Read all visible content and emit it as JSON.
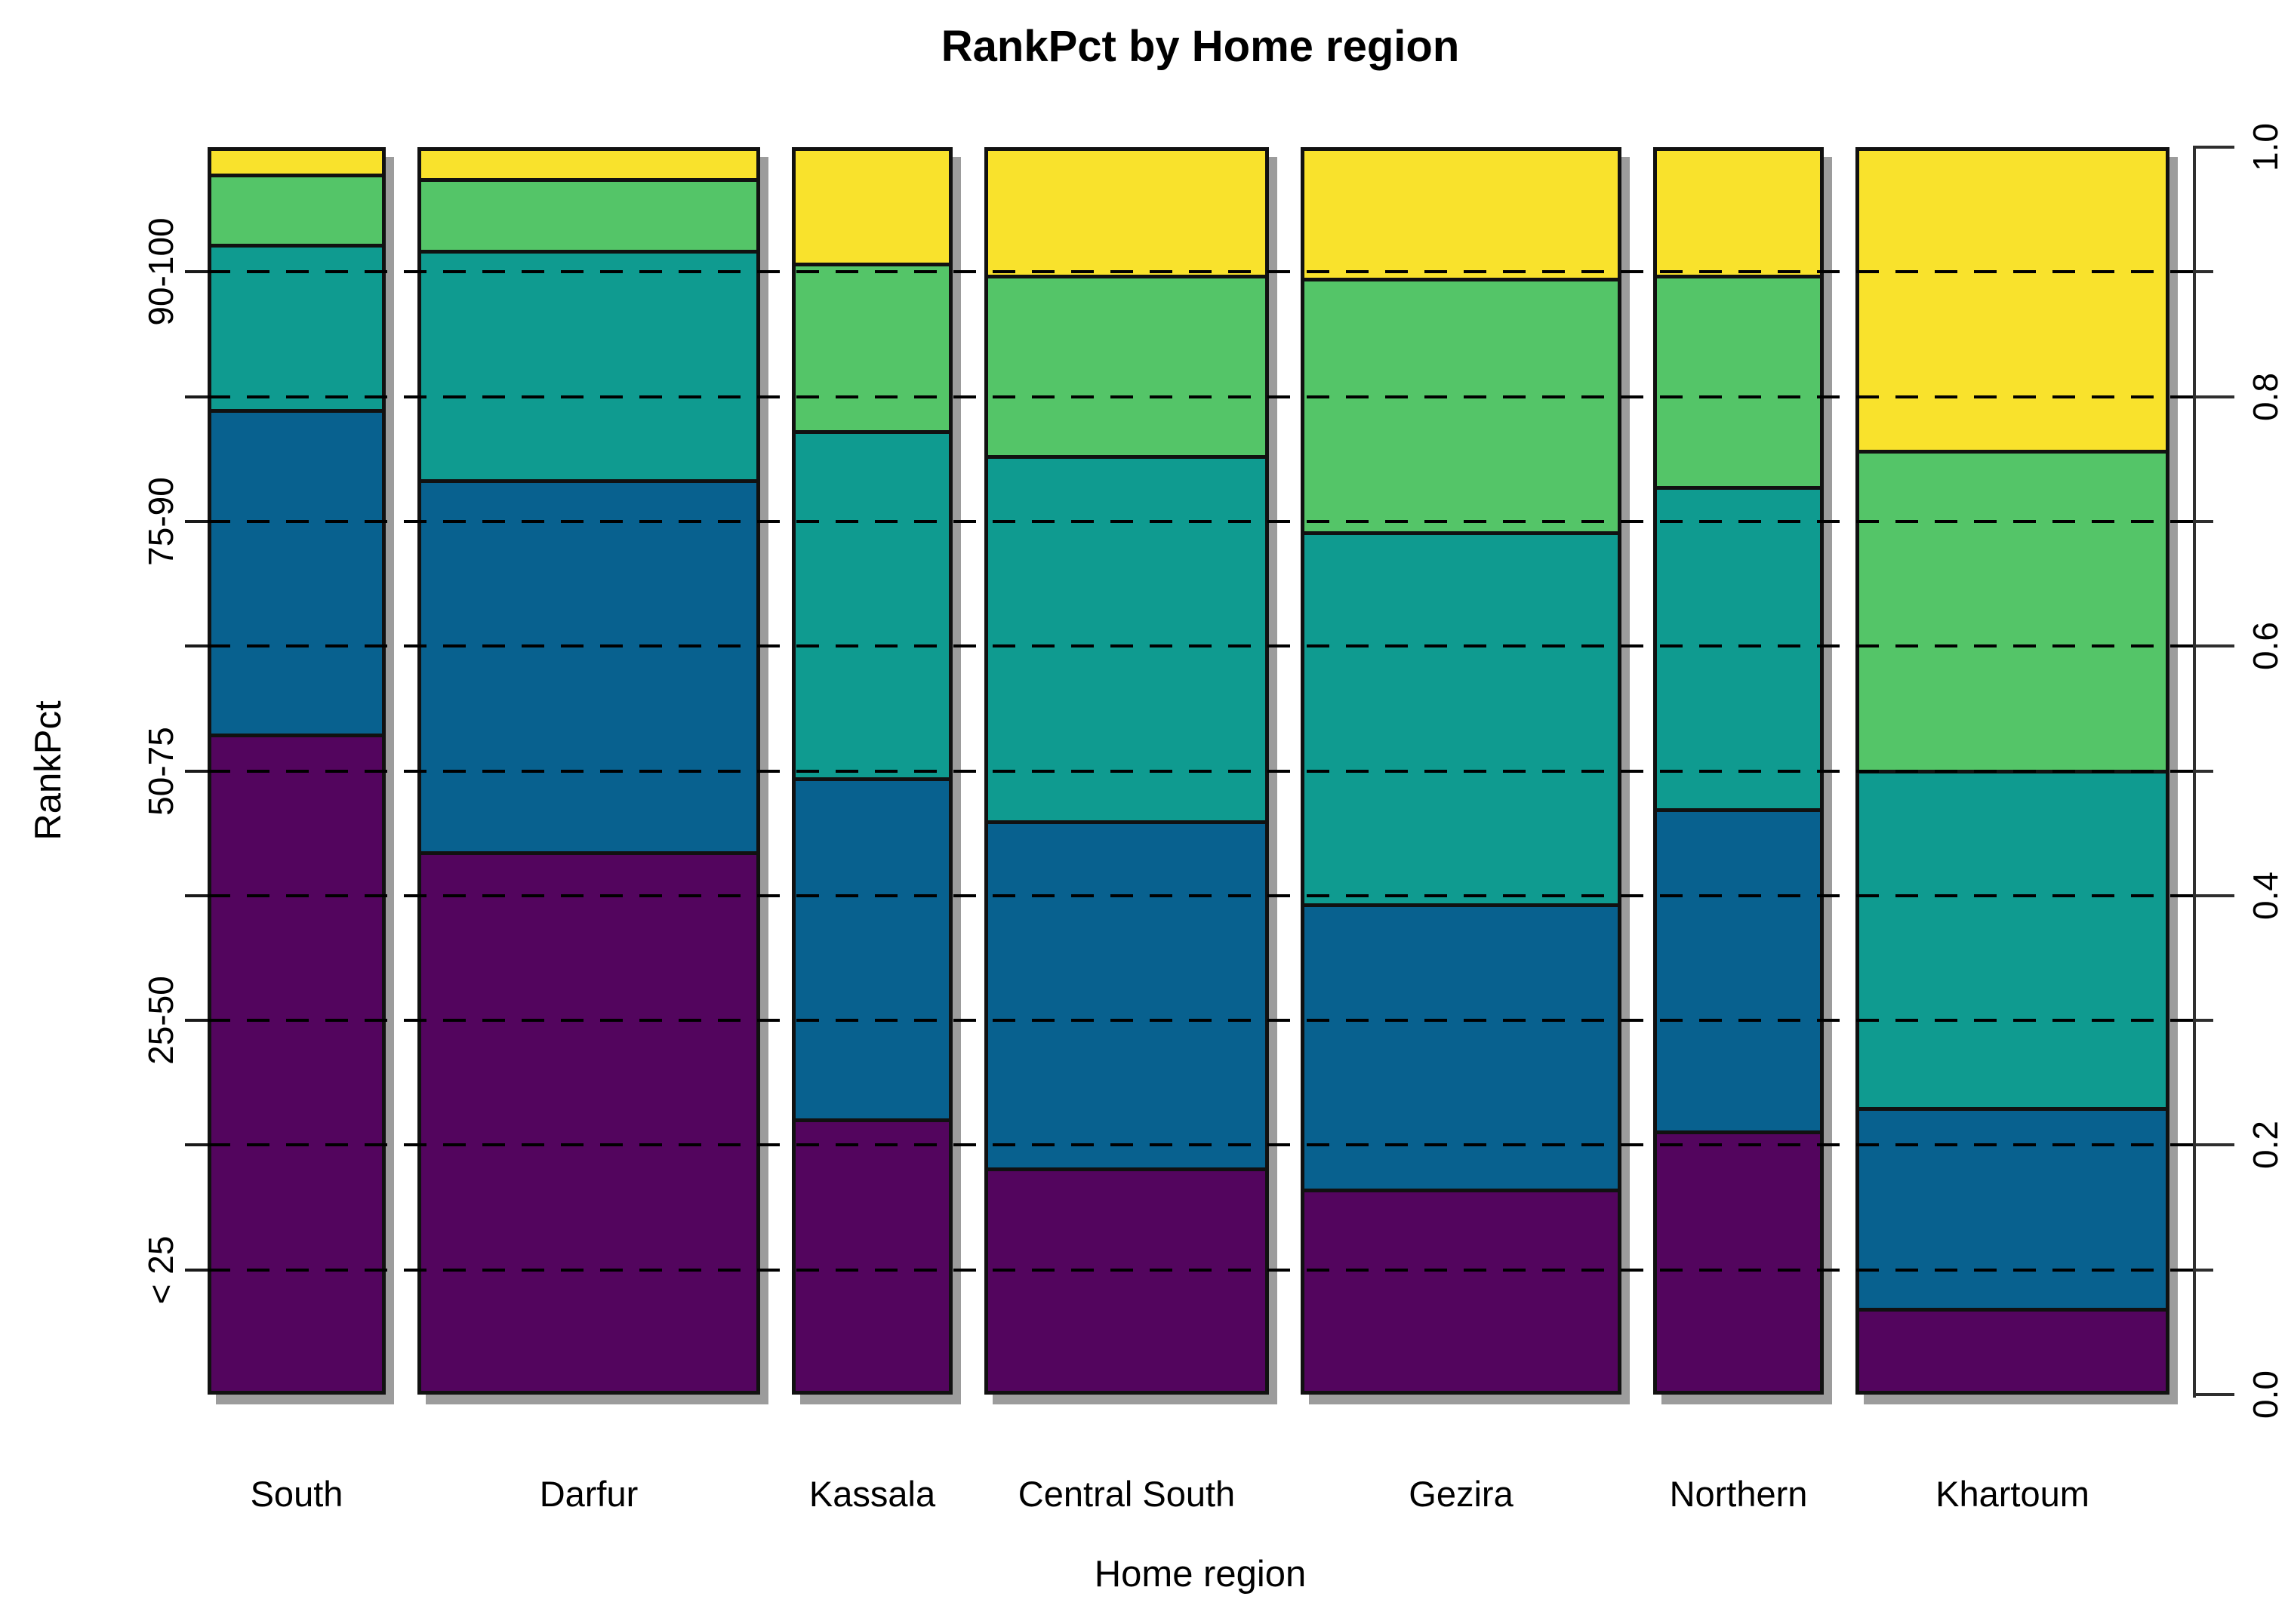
{
  "chart_data": {
    "type": "bar",
    "stacked": true,
    "variant": "spineplot-proportional-width",
    "title": "RankPct by Home region",
    "xlabel": "Home region",
    "ylabel": "RankPct",
    "categories": [
      "South",
      "Darfur",
      "Kassala",
      "Central South",
      "Gezira",
      "Northern",
      "Khartoum"
    ],
    "bar_width_shares": [
      0.1005,
      0.1934,
      0.0907,
      0.1606,
      0.181,
      0.0963,
      0.1772
    ],
    "series": [
      {
        "name": "< 25",
        "color": "#53055e",
        "values": [
          0.53,
          0.435,
          0.22,
          0.18,
          0.163,
          0.21,
          0.067
        ]
      },
      {
        "name": "25-50",
        "color": "#08618f",
        "values": [
          0.262,
          0.3,
          0.275,
          0.28,
          0.23,
          0.26,
          0.162
        ]
      },
      {
        "name": "50-75",
        "color": "#0f9b90",
        "values": [
          0.133,
          0.185,
          0.28,
          0.295,
          0.3,
          0.26,
          0.272
        ]
      },
      {
        "name": "75-90",
        "color": "#54c568",
        "values": [
          0.057,
          0.058,
          0.135,
          0.145,
          0.205,
          0.17,
          0.258
        ]
      },
      {
        "name": "90-100",
        "color": "#f9e22c",
        "values": [
          0.018,
          0.022,
          0.09,
          0.1,
          0.102,
          0.1,
          0.241
        ]
      }
    ],
    "y_axis_right": {
      "range": [
        0.0,
        1.0
      ],
      "major_tick_labels": [
        "0.0",
        "0.2",
        "0.4",
        "0.6",
        "0.8",
        "1.0"
      ],
      "major_tick_values": [
        0.0,
        0.2,
        0.4,
        0.6,
        0.8,
        1.0
      ],
      "minor_tick_values": [
        0.1,
        0.3,
        0.5,
        0.7,
        0.9
      ]
    },
    "y_axis_left": {
      "category_labels": [
        "< 25",
        "25-50",
        "50-75",
        "75-90",
        "90-100"
      ],
      "label_positions": [
        0.1,
        0.3,
        0.5,
        0.7,
        0.9
      ],
      "tick_values": [
        0.1,
        0.2,
        0.3,
        0.4,
        0.5,
        0.6,
        0.7,
        0.8,
        0.9
      ]
    },
    "gridlines": {
      "values": [
        0.1,
        0.2,
        0.3,
        0.4,
        0.5,
        0.6,
        0.7,
        0.8,
        0.9
      ],
      "style": "dashed",
      "color": "#000000"
    },
    "style_colors": {
      "bar_border": "#111111",
      "bar_shadow": "#9c9c9c",
      "axis": "#2e2e2e",
      "text": "#000000",
      "background": "#ffffff"
    }
  }
}
